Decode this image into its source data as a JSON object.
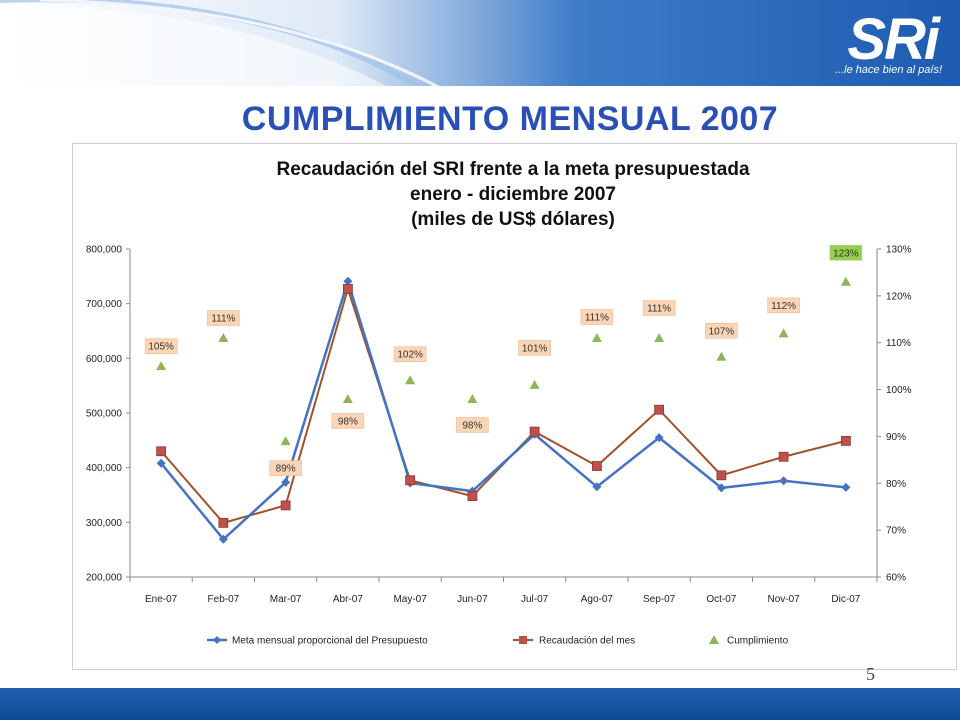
{
  "slide": {
    "title": "CUMPLIMIENTO MENSUAL 2007",
    "logo": "SRi",
    "tagline": "...le hace bien al país!",
    "page_number": "5"
  },
  "colors": {
    "header_blue": "#1c5bb0",
    "title_blue": "#2a50b8",
    "meta_series": "#4472c4",
    "recaudacion_series": "#a0522d",
    "recaudacion_marker": "#c0504d",
    "cumplimiento_marker": "#8db657",
    "label_bg": "#fbd5b5",
    "label_highlight_bg": "#92d050"
  },
  "chart_data": {
    "type": "line",
    "title_lines": [
      "Recaudación del SRI frente a la meta presupuestada",
      "enero - diciembre 2007",
      "(miles de US$ dólares)"
    ],
    "categories": [
      "Ene-07",
      "Feb-07",
      "Mar-07",
      "Abr-07",
      "May-07",
      "Jun-07",
      "Jul-07",
      "Ago-07",
      "Sep-07",
      "Oct-07",
      "Nov-07",
      "Dic-07"
    ],
    "y_left": {
      "min": 200000,
      "max": 800000,
      "ticks": [
        "200,000",
        "300,000",
        "400,000",
        "500,000",
        "600,000",
        "700,000",
        "800,000"
      ]
    },
    "y_right": {
      "min": 60,
      "max": 130,
      "ticks": [
        "60%",
        "70%",
        "80%",
        "90%",
        "100%",
        "110%",
        "120%",
        "130%"
      ]
    },
    "series": [
      {
        "name": "Meta mensual proporcional del Presupuesto",
        "axis": "left",
        "values": [
          408000,
          269000,
          373000,
          741000,
          372000,
          357000,
          461000,
          365000,
          455000,
          363000,
          376000,
          364000
        ]
      },
      {
        "name": "Recaudación del mes",
        "axis": "left",
        "values": [
          430000,
          299000,
          331000,
          727000,
          377000,
          348000,
          466000,
          403000,
          506000,
          386000,
          420000,
          449000
        ]
      },
      {
        "name": "Cumplimiento",
        "axis": "right",
        "values": [
          105,
          111,
          89,
          98,
          102,
          98,
          101,
          111,
          111,
          107,
          112,
          123
        ]
      }
    ],
    "data_labels": [
      "105%",
      "111%",
      "89%",
      "98%",
      "102%",
      "98%",
      "101%",
      "111%",
      "111%",
      "107%",
      "112%",
      "123%"
    ],
    "legend_position": "bottom",
    "grid": false
  }
}
